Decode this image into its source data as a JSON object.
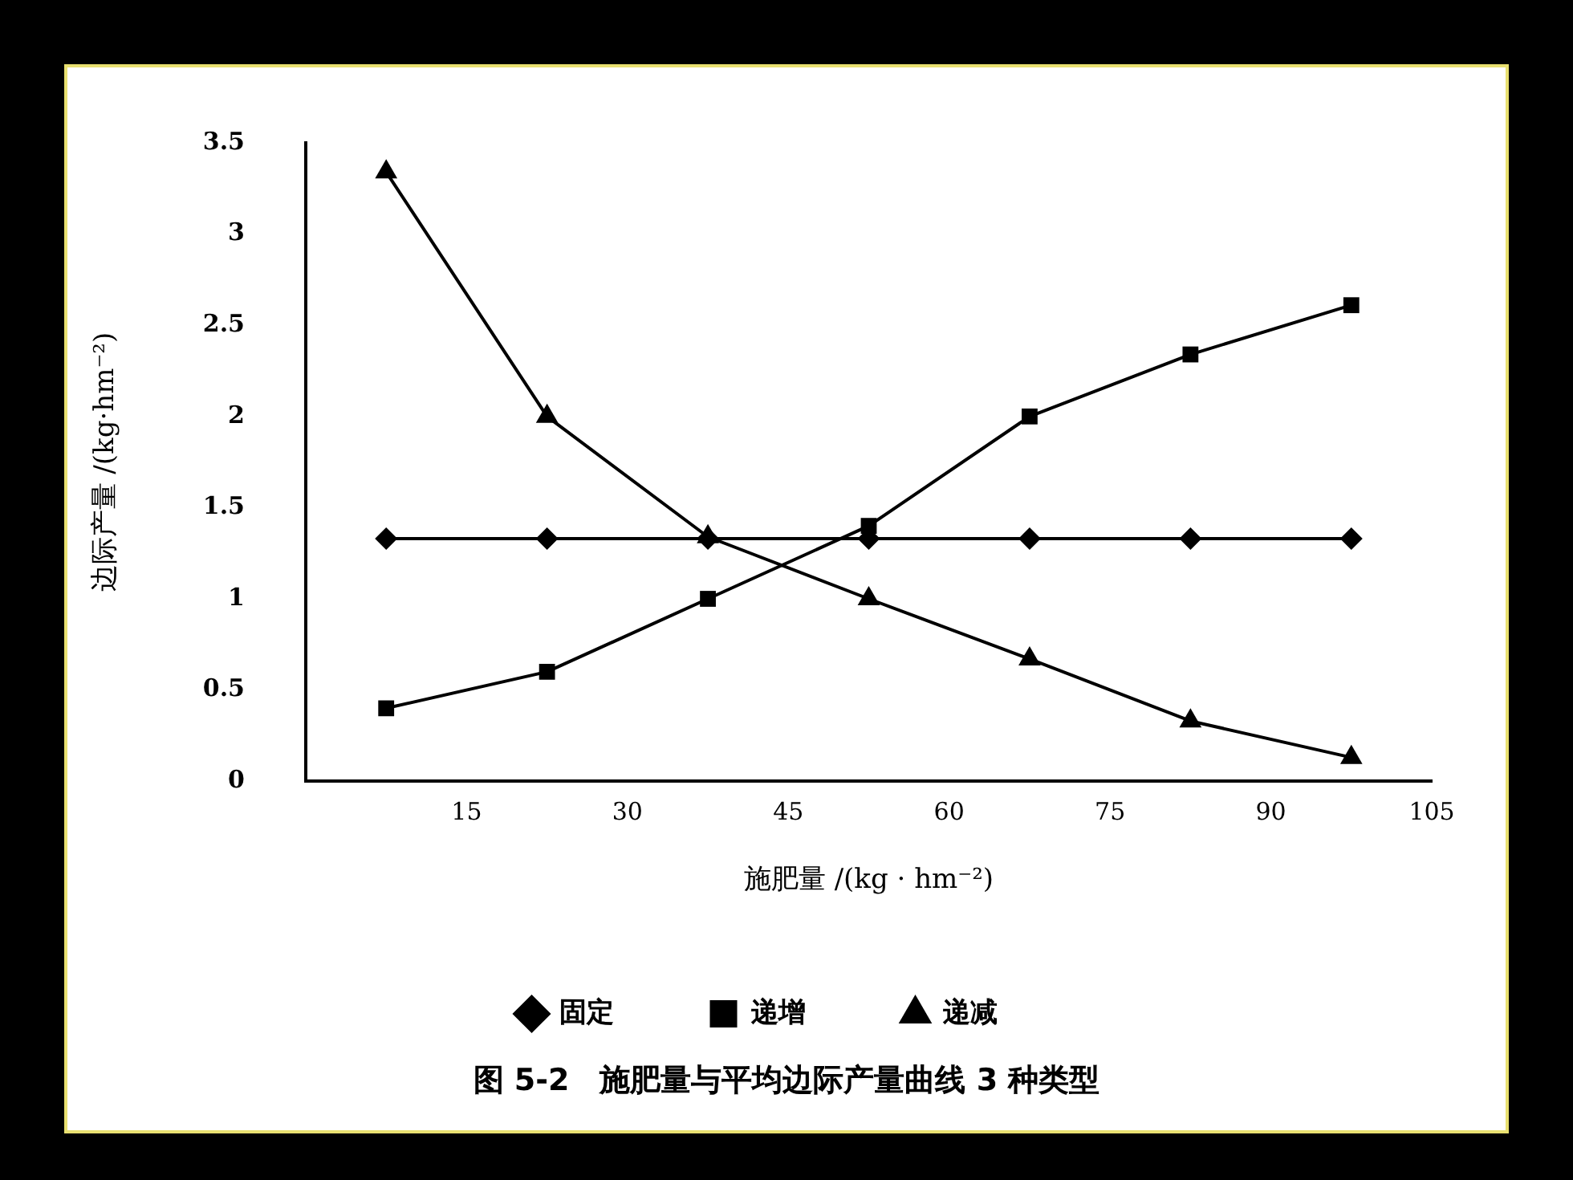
{
  "chart_data": {
    "type": "line",
    "title": "图 5-2　施肥量与平均边际产量曲线 3 种类型",
    "xlabel": "施肥量 /(kg · hm⁻²)",
    "ylabel": "边际产量 /(kg·hm⁻²)",
    "x": [
      7.5,
      22.5,
      37.5,
      52.5,
      67.5,
      82.5,
      97.5
    ],
    "series": [
      {
        "name": "固定",
        "color": "#000000",
        "marker": "diamond",
        "values": [
          1.33,
          1.33,
          1.33,
          1.33,
          1.33,
          1.33,
          1.33
        ]
      },
      {
        "name": "递增",
        "color": "#000000",
        "marker": "square",
        "values": [
          0.4,
          0.6,
          1.0,
          1.4,
          2.0,
          2.34,
          2.61
        ]
      },
      {
        "name": "递减",
        "color": "#000000",
        "marker": "triangle",
        "values": [
          3.34,
          2.0,
          1.34,
          1.0,
          0.67,
          0.33,
          0.13
        ]
      }
    ],
    "xlim": [
      0,
      105
    ],
    "xticks": [
      15,
      30,
      45,
      60,
      75,
      90,
      105
    ],
    "ylim": [
      0,
      3.5
    ],
    "yticks": [
      0,
      0.5,
      1,
      1.5,
      2,
      2.5,
      3,
      3.5
    ],
    "grid": false,
    "legend": "bottom",
    "line_style": "solid"
  }
}
